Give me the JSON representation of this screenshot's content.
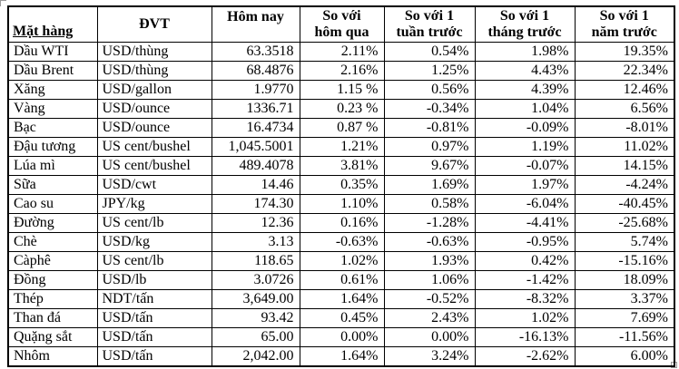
{
  "page": {
    "background_color": "#ffffff",
    "border_color": "#000000",
    "text_color": "#000000"
  },
  "table": {
    "columns": [
      {
        "key": "commodity",
        "label": "Mặt hàng"
      },
      {
        "key": "unit",
        "label": "ĐVT"
      },
      {
        "key": "today",
        "label": "Hôm nay"
      },
      {
        "key": "vs_yesterday",
        "label": "So với\nhôm qua"
      },
      {
        "key": "vs_week",
        "label": "So với 1\ntuần trước"
      },
      {
        "key": "vs_month",
        "label": "So với 1\ntháng trước"
      },
      {
        "key": "vs_year",
        "label": "So với 1\nnăm trước"
      }
    ],
    "rows": [
      [
        "Dầu WTI",
        "USD/thùng",
        "63.3518",
        "2.11%",
        "0.54%",
        "1.98%",
        "19.35%"
      ],
      [
        "Dầu Brent",
        "USD/thùng",
        "68.4876",
        "2.16%",
        "1.25%",
        "4.43%",
        "22.34%"
      ],
      [
        "Xăng",
        "USD/gallon",
        "1.9770",
        "1.15 %",
        "0.56%",
        "4.39%",
        "12.46%"
      ],
      [
        "Vàng",
        "USD/ounce",
        "1336.71",
        "0.23 %",
        "-0.34%",
        "1.04%",
        "6.56%"
      ],
      [
        "Bạc",
        "USD/ounce",
        "16.4734",
        "0.87 %",
        "-0.81%",
        "-0.09%",
        "-8.01%"
      ],
      [
        "Đậu tương",
        "US cent/bushel",
        "1,045.5001",
        "1.21%",
        "0.97%",
        "1.19%",
        "11.02%"
      ],
      [
        "Lúa mì",
        "US cent/bushel",
        "489.4078",
        "3.81%",
        "9.67%",
        "-0.07%",
        "14.15%"
      ],
      [
        "Sữa",
        "USD/cwt",
        "14.46",
        "0.35%",
        "1.69%",
        "1.97%",
        "-4.24%"
      ],
      [
        "Cao su",
        "JPY/kg",
        "174.30",
        "1.10%",
        "0.58%",
        "-6.04%",
        "-40.45%"
      ],
      [
        "Đường",
        "US cent/lb",
        "12.36",
        "0.16%",
        "-1.28%",
        "-4.41%",
        "-25.68%"
      ],
      [
        "Chè",
        "USD/kg",
        "3.13",
        "-0.63%",
        "-0.63%",
        "-0.95%",
        "5.74%"
      ],
      [
        "Càphê",
        "US cent/lb",
        "118.65",
        "1.02%",
        "1.93%",
        "0.42%",
        "-15.16%"
      ],
      [
        "Đồng",
        "USD/lb",
        "3.0726",
        "0.61%",
        "1.06%",
        "-1.42%",
        "18.09%"
      ],
      [
        "Thép",
        "NDT/tấn",
        "3,649.00",
        "1.64%",
        "-0.52%",
        "-8.32%",
        "3.37%"
      ],
      [
        "Than đá",
        "USD/tấn",
        "93.42",
        "0.45%",
        "2.43%",
        "1.02%",
        "7.69%"
      ],
      [
        "Quặng sắt",
        "USD/tấn",
        "65.00",
        "0.00%",
        "0.00%",
        "-16.13%",
        "-11.56%"
      ],
      [
        "Nhôm",
        "USD/tấn",
        "2,042.00",
        "1.64%",
        "3.24%",
        "-2.62%",
        "6.00%"
      ]
    ]
  }
}
